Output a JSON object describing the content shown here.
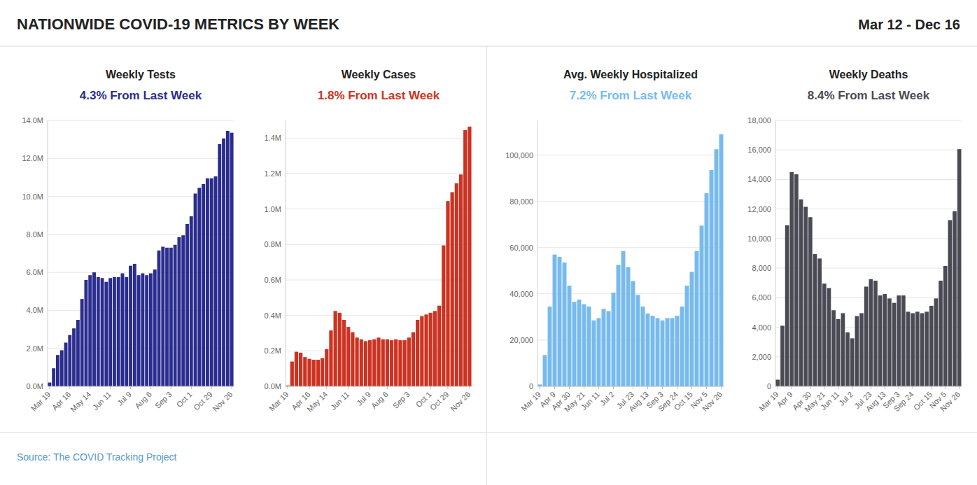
{
  "title": "NATIONWIDE COVID-19 METRICS BY WEEK",
  "subtitle": "Mar 12 - Dec 16",
  "annotations": [
    "Source: The COVID Tracking Project"
  ],
  "chart_data": [
    {
      "type": "bar",
      "title": "Weekly Tests",
      "subtitle": "4.3% From Last Week",
      "color": "#2b2d8e",
      "grid": true,
      "categories": [
        "Mar 19",
        null,
        null,
        null,
        null,
        "Apr 16",
        null,
        null,
        null,
        null,
        "May 14",
        null,
        null,
        null,
        null,
        "Jun 11",
        null,
        null,
        null,
        null,
        "Jul 9",
        null,
        null,
        null,
        null,
        "Aug 6",
        null,
        null,
        null,
        null,
        "Sep 3",
        null,
        null,
        null,
        null,
        "Oct 1",
        null,
        null,
        null,
        null,
        "Oct 29",
        null,
        null,
        null,
        null,
        "Nov 26"
      ],
      "values": [
        200000,
        950000,
        1650000,
        1900000,
        2300000,
        2700000,
        3050000,
        3500000,
        4600000,
        5600000,
        5850000,
        6000000,
        5750000,
        5700000,
        5500000,
        5700000,
        5750000,
        5750000,
        5950000,
        5750000,
        6350000,
        6450000,
        5850000,
        5950000,
        5850000,
        5950000,
        6150000,
        7150000,
        7350000,
        7300000,
        7300000,
        7450000,
        7850000,
        7950000,
        8550000,
        8950000,
        10150000,
        10450000,
        10650000,
        10950000,
        10950000,
        11050000,
        12750000,
        13050000,
        13450000,
        13350000
      ],
      "ylim": [
        0,
        14000000
      ],
      "yticks": [
        {
          "value": 0,
          "label": "0.0M"
        },
        {
          "value": 2000000,
          "label": "2.0M"
        },
        {
          "value": 4000000,
          "label": "4.0M"
        },
        {
          "value": 6000000,
          "label": "6.0M"
        },
        {
          "value": 8000000,
          "label": "8.0M"
        },
        {
          "value": 10000000,
          "label": "10.0M"
        },
        {
          "value": 12000000,
          "label": "12.0M"
        },
        {
          "value": 14000000,
          "label": "14.0M"
        }
      ]
    },
    {
      "type": "bar",
      "title": "Weekly Cases",
      "subtitle": "1.8% From Last Week",
      "color": "#cc3322",
      "grid": true,
      "categories": [
        "Mar 19",
        null,
        null,
        null,
        null,
        "Apr 16",
        null,
        null,
        null,
        "May 14",
        null,
        null,
        null,
        null,
        "Jun 11",
        null,
        null,
        null,
        null,
        "Jul 9",
        null,
        null,
        null,
        "Aug 6",
        null,
        null,
        null,
        null,
        "Sep 3",
        null,
        null,
        null,
        null,
        "Oct 1",
        null,
        null,
        null,
        "Oct 29",
        null,
        null,
        null,
        null,
        "Nov 26"
      ],
      "values": [
        5000,
        140000,
        195000,
        190000,
        165000,
        155000,
        150000,
        150000,
        158000,
        210000,
        315000,
        425000,
        415000,
        375000,
        335000,
        305000,
        275000,
        265000,
        255000,
        260000,
        265000,
        275000,
        265000,
        265000,
        260000,
        265000,
        260000,
        260000,
        275000,
        305000,
        375000,
        395000,
        405000,
        415000,
        425000,
        455000,
        795000,
        1045000,
        1095000,
        1145000,
        1195000,
        1445000,
        1465000
      ],
      "ylim": [
        0,
        1500000
      ],
      "yticks": [
        {
          "value": 0,
          "label": "0.0M"
        },
        {
          "value": 200000,
          "label": "0.2M"
        },
        {
          "value": 400000,
          "label": "0.4M"
        },
        {
          "value": 600000,
          "label": "0.6M"
        },
        {
          "value": 800000,
          "label": "0.8M"
        },
        {
          "value": 1000000,
          "label": "1.0M"
        },
        {
          "value": 1200000,
          "label": "1.2M"
        },
        {
          "value": 1400000,
          "label": "1.4M"
        }
      ]
    },
    {
      "type": "bar",
      "title": "Avg. Weekly Hospitalized",
      "subtitle": "7.2% From Last Week",
      "color": "#77bbee",
      "grid": true,
      "categories": [
        "Mar 19",
        null,
        null,
        "Apr 9",
        null,
        null,
        "Apr 30",
        null,
        null,
        "May 21",
        null,
        null,
        "Jun 11",
        null,
        null,
        "Jul 2",
        null,
        null,
        null,
        "Jul 23",
        null,
        null,
        "Aug 13",
        null,
        null,
        "Sep 3",
        null,
        null,
        "Sep 24",
        null,
        null,
        "Oct 15",
        null,
        null,
        "Nov 5",
        null,
        null,
        "Nov 26"
      ],
      "values": [
        800,
        13500,
        34500,
        57000,
        56000,
        53500,
        43500,
        36500,
        37500,
        35500,
        34500,
        28500,
        29500,
        33500,
        32500,
        40500,
        52500,
        58500,
        51500,
        45500,
        39500,
        34500,
        31500,
        30500,
        29500,
        28500,
        29500,
        29500,
        30500,
        34500,
        43500,
        49500,
        58500,
        69500,
        83500,
        93500,
        102500,
        109000
      ],
      "ylim": [
        0,
        115000
      ],
      "yticks": [
        0,
        {
          "value": 20000,
          "label": "20,000"
        },
        {
          "value": 40000,
          "label": "40,000"
        },
        {
          "value": 60000,
          "label": "60,000"
        },
        {
          "value": 80000,
          "label": "80,000"
        },
        {
          "value": 100000,
          "label": "100,000"
        }
      ]
    },
    {
      "type": "bar",
      "title": "Weekly Deaths",
      "subtitle": "8.4% From Last Week",
      "color": "#4a4a55",
      "grid": true,
      "categories": [
        "Mar 19",
        null,
        null,
        "Apr 9",
        null,
        null,
        null,
        "Apr 30",
        null,
        null,
        "May 21",
        null,
        null,
        "Jun 11",
        null,
        null,
        "Jul 2",
        null,
        null,
        null,
        "Jul 23",
        null,
        null,
        "Aug 13",
        null,
        null,
        "Sep 3",
        null,
        null,
        "Sep 24",
        null,
        null,
        null,
        "Oct 15",
        null,
        null,
        "Nov 5",
        null,
        null,
        "Nov 26"
      ],
      "values": [
        450,
        4100,
        10900,
        14500,
        14350,
        12650,
        12150,
        11450,
        8950,
        8650,
        6950,
        6650,
        5150,
        4550,
        4950,
        3650,
        3250,
        4750,
        4950,
        6750,
        7250,
        7150,
        6150,
        6250,
        5950,
        5650,
        6150,
        6150,
        5050,
        4950,
        5050,
        4950,
        5050,
        5450,
        5950,
        7150,
        8150,
        11250,
        11850,
        16050
      ],
      "ylim": [
        0,
        18000
      ],
      "yticks": [
        0,
        {
          "value": 2000,
          "label": "2,000"
        },
        {
          "value": 4000,
          "label": "4,000"
        },
        {
          "value": 6000,
          "label": "6,000"
        },
        {
          "value": 8000,
          "label": "8,000"
        },
        {
          "value": 10000,
          "label": "10,000"
        },
        {
          "value": 12000,
          "label": "12,000"
        },
        {
          "value": 14000,
          "label": "14,000"
        },
        {
          "value": 16000,
          "label": "16,000"
        },
        {
          "value": 18000,
          "label": "18,000"
        }
      ]
    }
  ]
}
